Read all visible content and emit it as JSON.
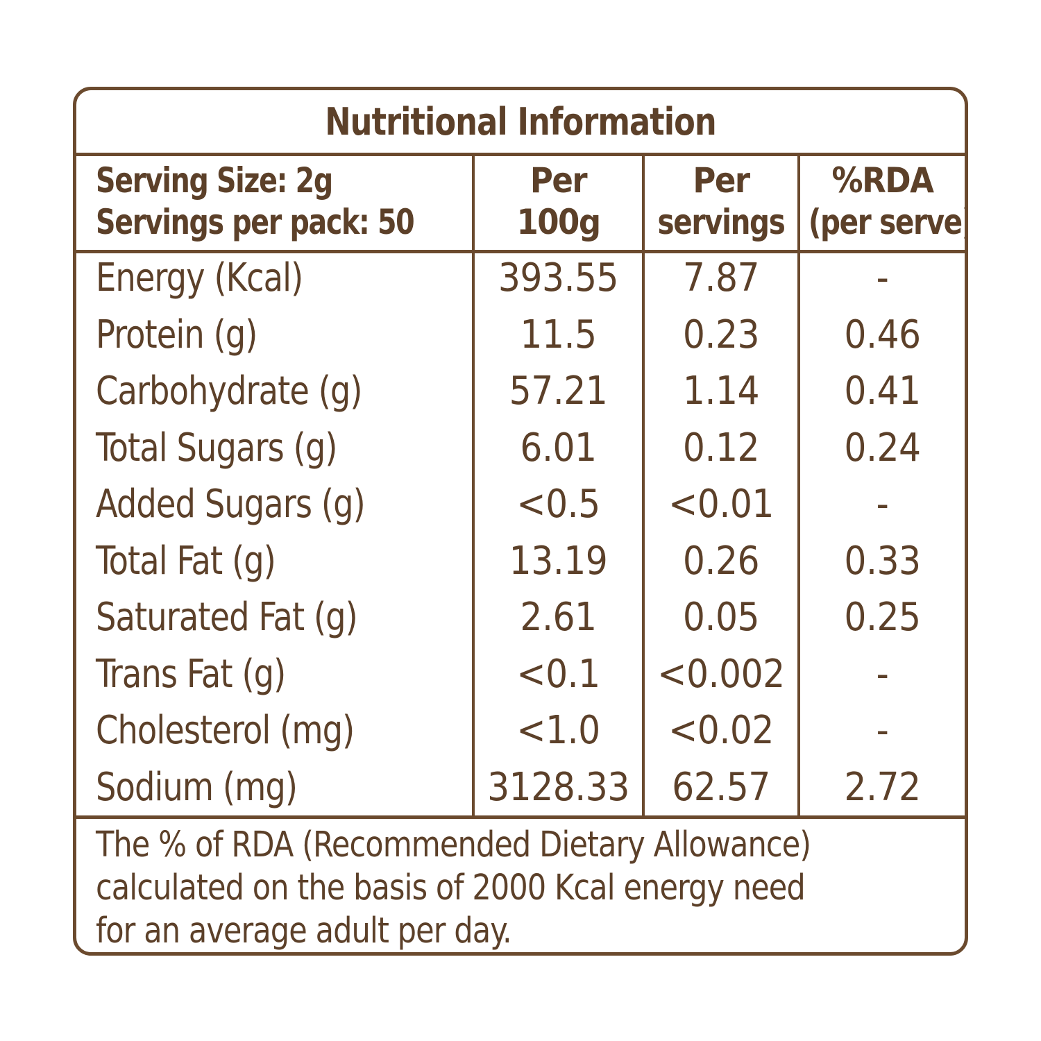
{
  "label": {
    "title": "Nutritional Information",
    "header": {
      "serving_size": "Serving Size: 2g",
      "servings_per_pack": "Servings per pack: 50",
      "col_per100": [
        "Per",
        "100g"
      ],
      "col_perserving": [
        "Per",
        "servings"
      ],
      "col_rda": [
        "%RDA",
        "(per serve)"
      ]
    },
    "rows": [
      {
        "name": "Energy (Kcal)",
        "per100": "393.55",
        "perserving": "7.87",
        "rda": "-"
      },
      {
        "name": "Protein (g)",
        "per100": "11.5",
        "perserving": "0.23",
        "rda": "0.46"
      },
      {
        "name": "Carbohydrate (g)",
        "per100": "57.21",
        "perserving": "1.14",
        "rda": "0.41"
      },
      {
        "name": "Total Sugars (g)",
        "per100": "6.01",
        "perserving": "0.12",
        "rda": "0.24"
      },
      {
        "name": "Added Sugars (g)",
        "per100": "<0.5",
        "perserving": "<0.01",
        "rda": "-"
      },
      {
        "name": "Total Fat (g)",
        "per100": "13.19",
        "perserving": "0.26",
        "rda": "0.33"
      },
      {
        "name": "Saturated Fat (g)",
        "per100": "2.61",
        "perserving": "0.05",
        "rda": "0.25"
      },
      {
        "name": "Trans Fat (g)",
        "per100": "<0.1",
        "perserving": "<0.002",
        "rda": "-"
      },
      {
        "name": "Cholesterol (mg)",
        "per100": "<1.0",
        "perserving": "<0.02",
        "rda": "-"
      },
      {
        "name": "Sodium (mg)",
        "per100": "3128.33",
        "perserving": "62.57",
        "rda": "2.72"
      }
    ],
    "footnote": [
      "The % of  RDA (Recommended Dietary Allowance)",
      "calculated on the basis of 2000 Kcal energy need",
      "for an average adult per day."
    ]
  },
  "colors": {
    "border": "#6b4a2e",
    "text": "#5c4029",
    "background": "#ffffff"
  }
}
